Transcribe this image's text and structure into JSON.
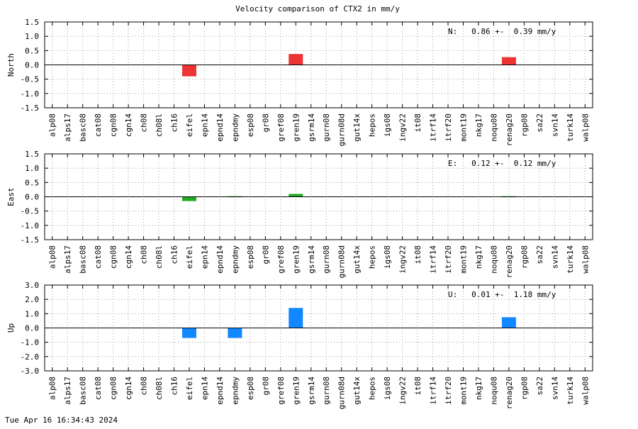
{
  "chart_data": {
    "type": "bar",
    "title": "Velocity comparison of CTX2 in mm/y",
    "categories": [
      "alp08",
      "alps17",
      "basc08",
      "cat08",
      "cgn08",
      "cgn14",
      "ch08",
      "ch08l",
      "ch16",
      "eifel",
      "epn14",
      "epnd14",
      "epndmy",
      "esp08",
      "gr08",
      "gref08",
      "gren19",
      "gsrm14",
      "gurn08",
      "gurn08d",
      "gut14x",
      "hepos",
      "igs08",
      "ingv22",
      "it08",
      "itrf14",
      "itrf20",
      "mont19",
      "nkg17",
      "noqu08",
      "renag20",
      "rgp08",
      "sa22",
      "svn14",
      "turk14",
      "walp08"
    ],
    "legend": "none",
    "grid": true,
    "panels": [
      {
        "ylabel": "North",
        "ylim": [
          -1.5,
          1.5
        ],
        "yticks": [
          "1.5",
          "1.0",
          "0.5",
          "0.0",
          "-0.5",
          "-1.0",
          "-1.5"
        ],
        "ytick_values": [
          1.5,
          1.0,
          0.5,
          0.0,
          -0.5,
          -1.0,
          -1.5
        ],
        "color": "#ee3333",
        "stat_label": "N:   0.86 +-  0.39 mm/y",
        "values": [
          0,
          0,
          0,
          0,
          0,
          0,
          0,
          0,
          0,
          -0.4,
          0,
          0,
          0,
          0,
          0,
          0,
          0.38,
          0,
          0,
          0,
          0,
          0,
          0,
          0,
          0,
          0,
          0,
          0,
          0,
          0,
          0.27,
          0,
          0,
          0,
          0,
          0
        ]
      },
      {
        "ylabel": "East",
        "ylim": [
          -1.5,
          1.5
        ],
        "yticks": [
          "1.5",
          "1.0",
          "0.5",
          "0.0",
          "-0.5",
          "-1.0",
          "-1.5"
        ],
        "ytick_values": [
          1.5,
          1.0,
          0.5,
          0.0,
          -0.5,
          -1.0,
          -1.5
        ],
        "color": "#22aa22",
        "stat_label": "E:   0.12 +-  0.12 mm/y",
        "values": [
          0,
          0,
          0,
          0,
          0,
          0,
          0,
          0,
          0,
          -0.15,
          0,
          0,
          0.02,
          0,
          0,
          0,
          0.1,
          0,
          0,
          0,
          0,
          0,
          0,
          0,
          0,
          0,
          0,
          0,
          0,
          0,
          0.02,
          0,
          0,
          0,
          0,
          0
        ]
      },
      {
        "ylabel": "Up",
        "ylim": [
          -3.0,
          3.0
        ],
        "yticks": [
          "3.0",
          "2.0",
          "1.0",
          "0.0",
          "-1.0",
          "-2.0",
          "-3.0"
        ],
        "ytick_values": [
          3.0,
          2.0,
          1.0,
          0.0,
          -1.0,
          -2.0,
          -3.0
        ],
        "color": "#1188ff",
        "stat_label": "U:   0.01 +-  1.18 mm/y",
        "values": [
          0,
          0,
          0,
          0,
          0,
          0,
          0,
          0,
          0,
          -0.7,
          0,
          0,
          -0.7,
          0,
          0,
          0,
          1.4,
          0,
          0,
          0,
          0,
          0,
          0,
          0,
          0,
          0,
          0,
          0,
          0,
          0,
          0.75,
          0,
          0,
          0,
          0,
          0
        ]
      }
    ]
  },
  "footer": {
    "timestamp": "Tue Apr 16 16:34:43 2024"
  }
}
